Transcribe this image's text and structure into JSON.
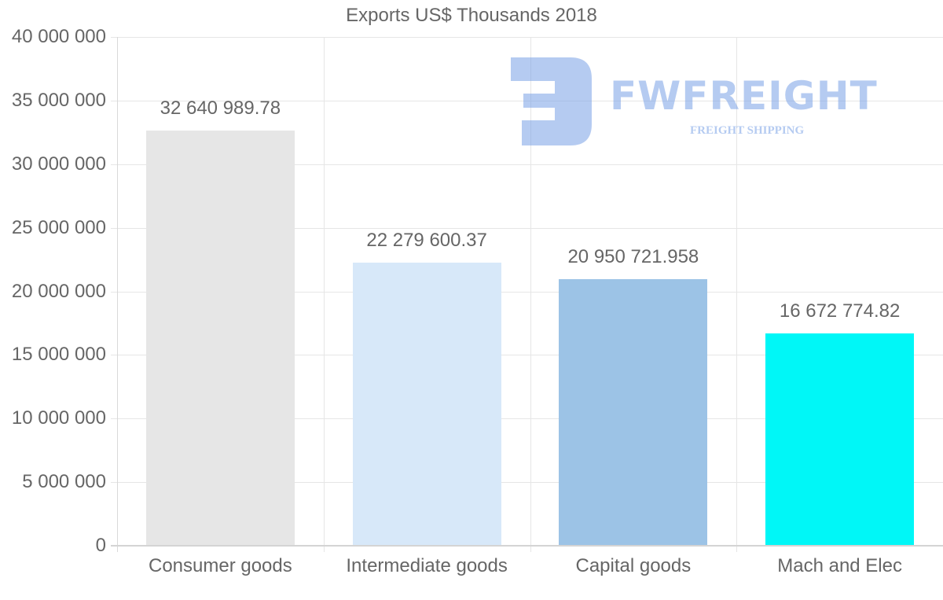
{
  "chart_data": {
    "type": "bar",
    "title": "Exports US$ Thousands 2018",
    "categories": [
      "Consumer goods",
      "Intermediate goods",
      "Capital goods",
      "Mach and Elec"
    ],
    "values": [
      32640989.78,
      22279600.37,
      20950721.958,
      16672774.82
    ],
    "data_labels": [
      "32 640 989.78",
      "22 279 600.37",
      "20 950 721.958",
      "16 672 774.82"
    ],
    "colors": [
      "#e6e6e6",
      "#d7e8f9",
      "#9cc3e6",
      "#00f7f7"
    ],
    "xlabel": "",
    "ylabel": "",
    "ylim": [
      0,
      40000000
    ],
    "yticks": [
      0,
      5000000,
      10000000,
      15000000,
      20000000,
      25000000,
      30000000,
      35000000,
      40000000
    ],
    "ytick_labels": [
      "0",
      "5 000 000",
      "10 000 000",
      "15 000 000",
      "20 000 000",
      "25 000 000",
      "30 000 000",
      "35 000 000",
      "40 000 000"
    ],
    "grid": true,
    "legend": "none"
  },
  "watermark": {
    "brand": "FWFREIGHT",
    "tagline": "FREIGHT SHIPPING",
    "color": "#a8c4f0"
  }
}
